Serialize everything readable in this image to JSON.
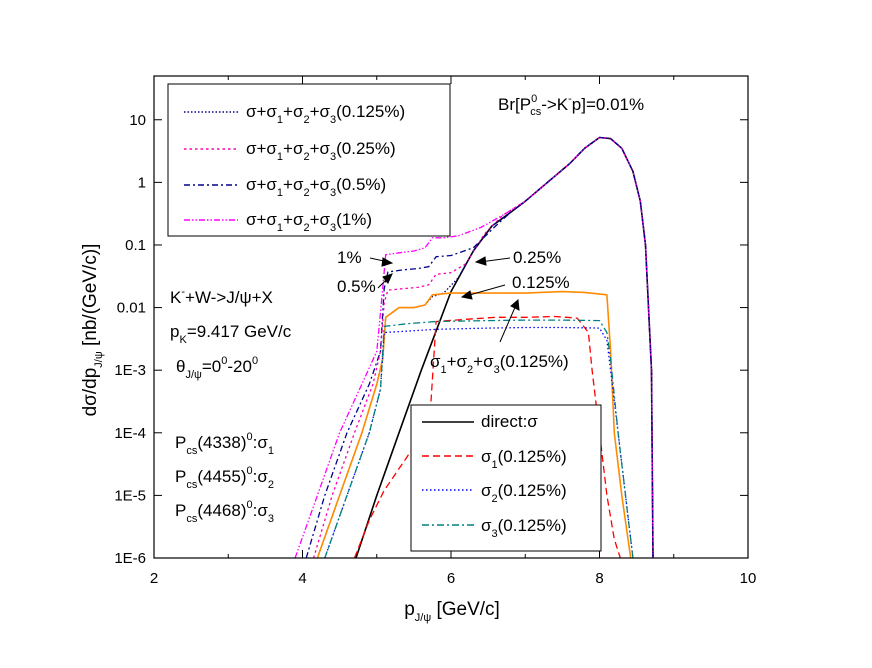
{
  "chart_data": {
    "type": "line",
    "x_scale": "linear",
    "y_scale": "log",
    "xlim": [
      2,
      10
    ],
    "ylim": [
      1e-06,
      50
    ],
    "x_ticks": [
      2,
      4,
      6,
      8,
      10
    ],
    "x_tick_labels": [
      "2",
      "4",
      "6",
      "8",
      "10"
    ],
    "y_ticks": [
      1e-06,
      1e-05,
      0.0001,
      0.001,
      0.01,
      0.1,
      1,
      10
    ],
    "y_tick_labels": [
      "1E-6",
      "1E-5",
      "1E-4",
      "1E-3",
      "0.01",
      "0.1",
      "1",
      "10"
    ],
    "xlabel": {
      "main": "p",
      "sub": "J/ψ",
      "rest": " [GeV/c]"
    },
    "ylabel": {
      "pre": "dσ/dp",
      "sub": "J/ψ",
      "rest": " [nb/(GeV/c)]"
    },
    "branching_label": {
      "pre": "Br[P",
      "sup": "0",
      "sub": "cs",
      "post": "->K",
      "sup2": "-",
      "post2": "p]=0.01%"
    },
    "reaction_label": {
      "pre": "K",
      "sup": "-",
      "post": "+W->J/ψ+X"
    },
    "momentum_label": {
      "pre": "p",
      "sub": "K",
      "post": "=9.417 GeV/c"
    },
    "angle_label": {
      "pre": "θ",
      "sub": "J/ψ",
      "post": "=0",
      "sup1": "0",
      "mid": "-20",
      "sup2": "0"
    },
    "state_labels": [
      {
        "pre": "P",
        "sub": "cs",
        "mid": "(4338)",
        "sup": "0",
        "post": ":σ",
        "sub2": "1"
      },
      {
        "pre": "P",
        "sub": "cs",
        "mid": "(4455)",
        "sup": "0",
        "post": ":σ",
        "sub2": "2"
      },
      {
        "pre": "P",
        "sub": "cs",
        "mid": "(4468)",
        "sup": "0",
        "post": ":σ",
        "sub2": "3"
      }
    ],
    "curve_annotations": {
      "p1": "1%",
      "p05": "0.5%",
      "p025": "0.25%",
      "p0125": "0.125%",
      "sum123": {
        "a": "σ",
        "a_sub": "1",
        "b": "+σ",
        "b_sub": "2",
        "c": "+σ",
        "c_sub": "3",
        "d": "(0.125%)"
      }
    },
    "legend_top": [
      {
        "name": "σ+σ1+σ2+σ3(0.125%)",
        "pct": "(0.125%)",
        "color": "#00008b",
        "dash": "1.5,2"
      },
      {
        "name": "σ+σ1+σ2+σ3(0.25%)",
        "pct": "(0.25%)",
        "color": "#ff00b0",
        "dash": "2.5,3"
      },
      {
        "name": "σ+σ1+σ2+σ3(0.5%)",
        "pct": "(0.5%)",
        "color": "#00008b",
        "dash": "6,3,2,3"
      },
      {
        "name": "σ+σ1+σ2+σ3(1%)",
        "pct": "(1%)",
        "color": "#ff00ff",
        "dash": "6,2,1.5,2,1.5,2"
      }
    ],
    "legend_bottom": [
      {
        "name": "direct:σ",
        "color": "#000000",
        "dash": ""
      },
      {
        "name": "σ1(0.125%)",
        "sub": "1",
        "pct": "(0.125%)",
        "color": "#ff0000",
        "dash": "7,4"
      },
      {
        "name": "σ2(0.125%)",
        "sub": "2",
        "pct": "(0.125%)",
        "color": "#0000ff",
        "dash": "1.5,2.5"
      },
      {
        "name": "σ3(0.125%)",
        "sub": "3",
        "pct": "(0.125%)",
        "color": "#008080",
        "dash": "7,3,2,3"
      }
    ],
    "series": [
      {
        "name": "direct:σ",
        "color": "#000000",
        "dash": "",
        "width": 1.6,
        "points": [
          [
            4.72,
            1e-06
          ],
          [
            5.0,
            1e-05
          ],
          [
            5.3,
            0.0001
          ],
          [
            5.6,
            0.001
          ],
          [
            6.0,
            0.018
          ],
          [
            6.3,
            0.08
          ],
          [
            6.55,
            0.2
          ],
          [
            6.8,
            0.33
          ],
          [
            7.0,
            0.5
          ],
          [
            7.3,
            1.0
          ],
          [
            7.6,
            2.0
          ],
          [
            7.8,
            3.5
          ],
          [
            8.0,
            5.2
          ],
          [
            8.15,
            5.0
          ],
          [
            8.3,
            3.5
          ],
          [
            8.45,
            1.5
          ],
          [
            8.55,
            0.5
          ],
          [
            8.62,
            0.1
          ],
          [
            8.66,
            0.01
          ],
          [
            8.7,
            0.001
          ],
          [
            8.72,
            1e-06
          ]
        ]
      },
      {
        "name": "σ+σ1+σ2+σ3(1%)",
        "color": "#ff00ff",
        "dash": "6,2,1.5,2,1.5,2",
        "width": 1.3,
        "points": [
          [
            3.9,
            1e-06
          ],
          [
            4.2,
            1e-05
          ],
          [
            4.5,
            0.0001
          ],
          [
            4.8,
            0.0006
          ],
          [
            5.0,
            0.002
          ],
          [
            5.08,
            0.02
          ],
          [
            5.12,
            0.07
          ],
          [
            5.3,
            0.075
          ],
          [
            5.5,
            0.08
          ],
          [
            5.65,
            0.09
          ],
          [
            5.75,
            0.13
          ],
          [
            5.9,
            0.13
          ],
          [
            6.1,
            0.14
          ],
          [
            6.4,
            0.19
          ],
          [
            6.7,
            0.3
          ],
          [
            7.0,
            0.5
          ],
          [
            7.3,
            1.0
          ],
          [
            7.6,
            2.0
          ],
          [
            7.8,
            3.5
          ],
          [
            8.0,
            5.2
          ],
          [
            8.15,
            5.0
          ],
          [
            8.3,
            3.5
          ],
          [
            8.45,
            1.5
          ],
          [
            8.55,
            0.5
          ],
          [
            8.62,
            0.1
          ],
          [
            8.66,
            0.01
          ],
          [
            8.7,
            0.001
          ],
          [
            8.72,
            1e-06
          ]
        ]
      },
      {
        "name": "σ+σ1+σ2+σ3(0.5%)",
        "color": "#00008b",
        "dash": "6,3,2,3",
        "width": 1.3,
        "points": [
          [
            4.05,
            1e-06
          ],
          [
            4.3,
            1e-05
          ],
          [
            4.6,
            0.0001
          ],
          [
            4.9,
            0.0006
          ],
          [
            5.05,
            0.002
          ],
          [
            5.1,
            0.02
          ],
          [
            5.15,
            0.037
          ],
          [
            5.35,
            0.04
          ],
          [
            5.55,
            0.042
          ],
          [
            5.7,
            0.045
          ],
          [
            5.8,
            0.065
          ],
          [
            6.0,
            0.068
          ],
          [
            6.3,
            0.09
          ],
          [
            6.6,
            0.2
          ],
          [
            6.8,
            0.33
          ],
          [
            7.0,
            0.5
          ],
          [
            7.3,
            1.0
          ],
          [
            7.6,
            2.0
          ],
          [
            7.8,
            3.5
          ],
          [
            8.0,
            5.2
          ],
          [
            8.15,
            5.0
          ],
          [
            8.3,
            3.5
          ],
          [
            8.45,
            1.5
          ],
          [
            8.55,
            0.5
          ],
          [
            8.62,
            0.1
          ],
          [
            8.66,
            0.01
          ],
          [
            8.7,
            0.001
          ],
          [
            8.72,
            1e-06
          ]
        ]
      },
      {
        "name": "σ+σ1+σ2+σ3(0.25%)",
        "color": "#ff00b0",
        "dash": "2.5,3",
        "width": 1.3,
        "points": [
          [
            4.15,
            1e-06
          ],
          [
            4.4,
            1e-05
          ],
          [
            4.7,
            0.0001
          ],
          [
            4.95,
            0.0006
          ],
          [
            5.05,
            0.002
          ],
          [
            5.1,
            0.012
          ],
          [
            5.15,
            0.019
          ],
          [
            5.35,
            0.02
          ],
          [
            5.55,
            0.021
          ],
          [
            5.7,
            0.023
          ],
          [
            5.8,
            0.034
          ],
          [
            6.0,
            0.036
          ],
          [
            6.2,
            0.05
          ],
          [
            6.45,
            0.15
          ],
          [
            6.7,
            0.3
          ],
          [
            7.0,
            0.5
          ],
          [
            7.3,
            1.0
          ],
          [
            7.6,
            2.0
          ],
          [
            7.8,
            3.5
          ],
          [
            8.0,
            5.2
          ],
          [
            8.15,
            5.0
          ],
          [
            8.3,
            3.5
          ],
          [
            8.45,
            1.5
          ],
          [
            8.55,
            0.5
          ],
          [
            8.62,
            0.1
          ],
          [
            8.66,
            0.01
          ],
          [
            8.7,
            0.001
          ],
          [
            8.72,
            1e-06
          ]
        ]
      },
      {
        "name": "σ+σ1+σ2+σ3(0.125%)",
        "color": "#00008b",
        "dash": "1.5,2",
        "width": 1.3,
        "points": [
          [
            4.2,
            1e-06
          ],
          [
            4.5,
            1e-05
          ],
          [
            4.8,
            0.0001
          ],
          [
            5.0,
            0.0006
          ],
          [
            5.08,
            0.0015
          ],
          [
            5.12,
            0.007
          ],
          [
            5.3,
            0.01
          ],
          [
            5.5,
            0.01
          ],
          [
            5.65,
            0.011
          ],
          [
            5.75,
            0.015
          ],
          [
            5.9,
            0.017
          ],
          [
            6.1,
            0.03
          ],
          [
            6.3,
            0.08
          ],
          [
            6.55,
            0.2
          ],
          [
            6.8,
            0.33
          ],
          [
            7.0,
            0.5
          ],
          [
            7.3,
            1.0
          ],
          [
            7.6,
            2.0
          ],
          [
            7.8,
            3.5
          ],
          [
            8.0,
            5.2
          ],
          [
            8.15,
            5.0
          ],
          [
            8.3,
            3.5
          ],
          [
            8.45,
            1.5
          ],
          [
            8.55,
            0.5
          ],
          [
            8.62,
            0.1
          ],
          [
            8.66,
            0.01
          ],
          [
            8.7,
            0.001
          ],
          [
            8.72,
            1e-06
          ]
        ]
      },
      {
        "name": "σ1+σ2+σ3(0.125%)",
        "color": "#ff8c00",
        "dash": "",
        "width": 1.6,
        "points": [
          [
            4.2,
            1e-06
          ],
          [
            4.5,
            1e-05
          ],
          [
            4.8,
            0.0001
          ],
          [
            5.0,
            0.0006
          ],
          [
            5.08,
            0.0015
          ],
          [
            5.12,
            0.007
          ],
          [
            5.3,
            0.01
          ],
          [
            5.5,
            0.01
          ],
          [
            5.65,
            0.011
          ],
          [
            5.75,
            0.016
          ],
          [
            6.0,
            0.017
          ],
          [
            6.5,
            0.017
          ],
          [
            7.0,
            0.017
          ],
          [
            7.5,
            0.018
          ],
          [
            7.8,
            0.0175
          ],
          [
            8.1,
            0.016
          ],
          [
            8.15,
            0.002
          ],
          [
            8.2,
            0.0001
          ],
          [
            8.3,
            1e-05
          ],
          [
            8.42,
            1e-06
          ]
        ]
      },
      {
        "name": "σ1(0.125%)",
        "color": "#ff0000",
        "dash": "7,4",
        "width": 1.3,
        "points": [
          [
            4.7,
            1e-06
          ],
          [
            4.9,
            4e-06
          ],
          [
            5.1,
            1.2e-05
          ],
          [
            5.4,
            4e-05
          ],
          [
            5.6,
            9e-05
          ],
          [
            5.72,
            0.0002
          ],
          [
            5.8,
            0.006
          ],
          [
            6.2,
            0.0065
          ],
          [
            6.6,
            0.007
          ],
          [
            7.0,
            0.007
          ],
          [
            7.4,
            0.0072
          ],
          [
            7.7,
            0.0068
          ],
          [
            7.85,
            0.004
          ],
          [
            7.9,
            0.001
          ],
          [
            8.0,
            0.0001
          ],
          [
            8.1,
            1e-05
          ],
          [
            8.2,
            2e-06
          ],
          [
            8.28,
            1e-06
          ]
        ]
      },
      {
        "name": "σ2(0.125%)",
        "color": "#0000ff",
        "dash": "1.5,2.5",
        "width": 1.3,
        "points": [
          [
            4.3,
            1e-06
          ],
          [
            4.6,
            1e-05
          ],
          [
            4.9,
            0.0001
          ],
          [
            5.05,
            0.0005
          ],
          [
            5.1,
            0.004
          ],
          [
            5.4,
            0.0042
          ],
          [
            5.8,
            0.0045
          ],
          [
            6.5,
            0.0047
          ],
          [
            7.0,
            0.0048
          ],
          [
            7.5,
            0.0048
          ],
          [
            8.0,
            0.0047
          ],
          [
            8.1,
            0.003
          ],
          [
            8.15,
            0.001
          ],
          [
            8.25,
            0.0001
          ],
          [
            8.35,
            1e-05
          ],
          [
            8.45,
            1e-06
          ]
        ]
      },
      {
        "name": "σ3(0.125%)",
        "color": "#008080",
        "dash": "7,3,2,3",
        "width": 1.3,
        "points": [
          [
            4.3,
            1e-06
          ],
          [
            4.6,
            1e-05
          ],
          [
            4.9,
            0.0001
          ],
          [
            5.05,
            0.0005
          ],
          [
            5.1,
            0.005
          ],
          [
            5.4,
            0.0055
          ],
          [
            5.8,
            0.006
          ],
          [
            6.5,
            0.0062
          ],
          [
            7.0,
            0.0063
          ],
          [
            7.5,
            0.0063
          ],
          [
            8.0,
            0.0062
          ],
          [
            8.1,
            0.004
          ],
          [
            8.15,
            0.0015
          ],
          [
            8.25,
            0.0001
          ],
          [
            8.35,
            1e-05
          ],
          [
            8.45,
            1e-06
          ]
        ]
      }
    ]
  }
}
